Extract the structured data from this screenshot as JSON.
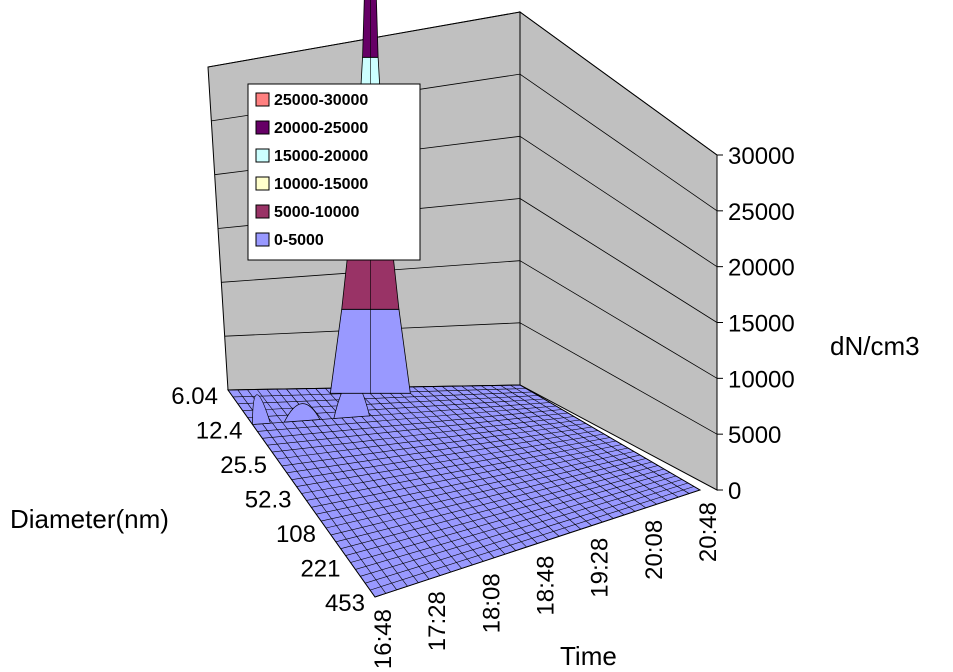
{
  "chart_data": {
    "type": "surface",
    "zlabel": "dN/cm3",
    "xlabel": "Time",
    "ylabel": "Diameter(nm)",
    "z_ticks": [
      "0",
      "5000",
      "10000",
      "15000",
      "20000",
      "25000",
      "30000"
    ],
    "zlim": [
      0,
      30000
    ],
    "time_ticks": [
      "16:48",
      "17:28",
      "18:08",
      "18:48",
      "19:28",
      "20:08",
      "20:48"
    ],
    "diameter_ticks": [
      "6.04",
      "12.4",
      "25.5",
      "52.3",
      "108",
      "221",
      "453"
    ],
    "legend": [
      {
        "label": "25000-30000",
        "color": "#ff8080"
      },
      {
        "label": "20000-25000",
        "color": "#660066"
      },
      {
        "label": "15000-20000",
        "color": "#ccffff"
      },
      {
        "label": "10000-15000",
        "color": "#ffffcc"
      },
      {
        "label": "5000-10000",
        "color": "#993366"
      },
      {
        "label": "0-5000",
        "color": "#9999ff"
      }
    ],
    "peak": {
      "time": "18:08",
      "diameter_nm": 6.04,
      "value": 29500
    },
    "features": [
      {
        "time": "18:08",
        "diameter_nm": 12.4,
        "value": 1500
      },
      {
        "time": "16:48",
        "diameter_nm": 12.4,
        "value": 1200
      },
      {
        "time": "17:28",
        "diameter_nm": 12.4,
        "value": 700
      },
      {
        "time": "18:48",
        "diameter_nm": 6.04,
        "value": 1400
      }
    ]
  }
}
